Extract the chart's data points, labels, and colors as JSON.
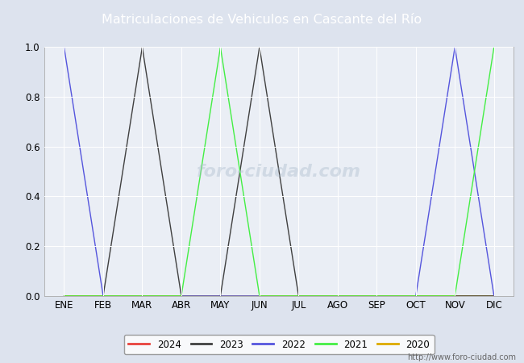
{
  "title": "Matriculaciones de Vehiculos en Cascante del Río",
  "title_bg_color": "#4472c4",
  "months": [
    "ENE",
    "FEB",
    "MAR",
    "ABR",
    "MAY",
    "JUN",
    "JUL",
    "AGO",
    "SEP",
    "OCT",
    "NOV",
    "DIC"
  ],
  "series": {
    "2024": {
      "color": "#e8413c",
      "values": [
        null,
        null,
        null,
        null,
        null,
        null,
        null,
        null,
        null,
        null,
        null,
        null
      ]
    },
    "2023": {
      "color": "#404040",
      "values": [
        0,
        0,
        1.0,
        0,
        0,
        1.0,
        0,
        0,
        0,
        0,
        0,
        0
      ]
    },
    "2022": {
      "color": "#5555dd",
      "values": [
        1.0,
        0,
        0,
        0,
        0,
        0,
        0,
        0,
        0,
        0,
        1.0,
        0
      ]
    },
    "2021": {
      "color": "#44ee44",
      "values": [
        0,
        0,
        0,
        0,
        1.0,
        0,
        0,
        0,
        0,
        0,
        0,
        1.0
      ]
    },
    "2020": {
      "color": "#ddaa00",
      "values": [
        0,
        0,
        0,
        0,
        0,
        0,
        0,
        0,
        0,
        0,
        0,
        0
      ]
    }
  },
  "ylim": [
    0,
    1.0
  ],
  "yticks": [
    0.0,
    0.2,
    0.4,
    0.6,
    0.8,
    1.0
  ],
  "outer_bg_color": "#dde3ee",
  "plot_bg_color": "#eaeef5",
  "grid_color": "#ffffff",
  "url_text": "http://www.foro-ciudad.com",
  "watermark_text": "foro-ciudad.com",
  "legend_years": [
    "2024",
    "2023",
    "2022",
    "2021",
    "2020"
  ],
  "legend_colors": [
    "#e8413c",
    "#404040",
    "#5555dd",
    "#44ee44",
    "#ddaa00"
  ],
  "figwidth": 6.5,
  "figheight": 4.5,
  "dpi": 100
}
